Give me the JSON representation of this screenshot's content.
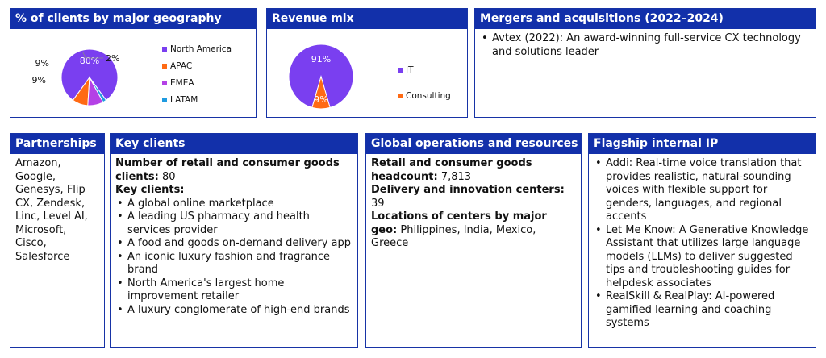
{
  "geography": {
    "title": "% of clients by major geography",
    "chart_data": {
      "type": "pie",
      "categories": [
        "North America",
        "APAC",
        "EMEA",
        "LATAM"
      ],
      "values": [
        80,
        9,
        9,
        2
      ],
      "labels": [
        "80%",
        "9%",
        "9%",
        "2%"
      ],
      "colors": [
        "#7a3ff0",
        "#ff6a14",
        "#b441e6",
        "#1f9be0"
      ],
      "legend_position": "right"
    }
  },
  "revenue": {
    "title": "Revenue mix",
    "chart_data": {
      "type": "pie",
      "categories": [
        "IT",
        "Consulting"
      ],
      "values": [
        91,
        9
      ],
      "labels": [
        "91%",
        "9%"
      ],
      "colors": [
        "#7a3ff0",
        "#ff6a14"
      ],
      "legend_position": "right"
    }
  },
  "mna": {
    "title": "Mergers and acquisitions (2022–2024)",
    "items": [
      "Avtex (2022): An award-winning full-service CX technology and solutions leader"
    ]
  },
  "partnerships": {
    "title": "Partnerships",
    "text": "Amazon, Google, Genesys, Flip CX, Zendesk, Linc, Level AI, Microsoft, Cisco, Salesforce"
  },
  "key_clients": {
    "title": "Key clients",
    "count_label": "Number of retail and consumer goods clients:",
    "count_value": " 80",
    "list_label": "Key clients:",
    "items": [
      "A global online marketplace",
      "A leading US pharmacy and health services provider",
      "A food and goods on-demand delivery app",
      "An iconic luxury fashion and fragrance brand",
      "North America's largest home improvement retailer",
      "A luxury conglomerate of high-end brands"
    ]
  },
  "operations": {
    "title": "Global operations and resources",
    "headcount_label": "Retail and consumer goods headcount:",
    "headcount_value": " 7,813",
    "centers_label": "Delivery and innovation centers:",
    "centers_value": "39",
    "locations_label": "Locations of centers by major geo:",
    "locations_value": " Philippines, India, Mexico, Greece"
  },
  "ip": {
    "title": "Flagship internal IP",
    "items": [
      "Addi: Real-time voice translation that provides realistic, natural-sounding voices with flexible support for genders, languages, and regional accents",
      "Let Me Know: A Generative Knowledge Assistant that utilizes large language models (LLMs) to deliver suggested tips and troubleshooting guides for helpdesk associates",
      "RealSkill & RealPlay: AI-powered gamified learning and coaching systems"
    ]
  }
}
